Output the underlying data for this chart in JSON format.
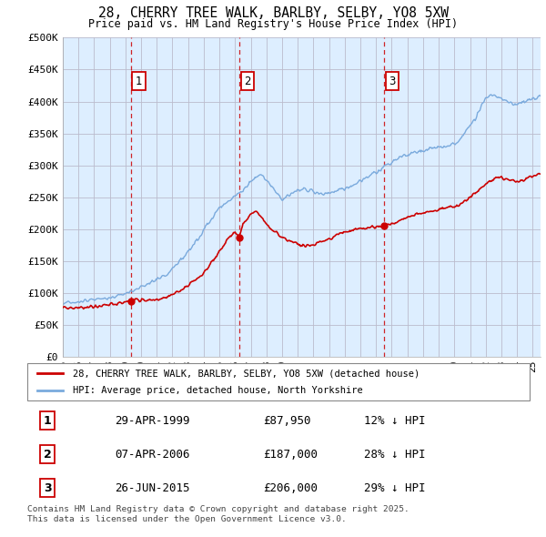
{
  "title": "28, CHERRY TREE WALK, BARLBY, SELBY, YO8 5XW",
  "subtitle": "Price paid vs. HM Land Registry's House Price Index (HPI)",
  "ylim": [
    0,
    500000
  ],
  "yticks": [
    0,
    50000,
    100000,
    150000,
    200000,
    250000,
    300000,
    350000,
    400000,
    450000,
    500000
  ],
  "xlim_start": 1995.0,
  "xlim_end": 2025.5,
  "sale_dates": [
    1999.33,
    2006.27,
    2015.49
  ],
  "sale_prices": [
    87950,
    187000,
    206000
  ],
  "sale_labels": [
    "1",
    "2",
    "3"
  ],
  "red_line_color": "#cc0000",
  "blue_line_color": "#7aaadd",
  "chart_bg_color": "#ddeeff",
  "legend_red_label": "28, CHERRY TREE WALK, BARLBY, SELBY, YO8 5XW (detached house)",
  "legend_blue_label": "HPI: Average price, detached house, North Yorkshire",
  "table_rows": [
    {
      "label": "1",
      "date": "29-APR-1999",
      "price": "£87,950",
      "hpi": "12% ↓ HPI"
    },
    {
      "label": "2",
      "date": "07-APR-2006",
      "price": "£187,000",
      "hpi": "28% ↓ HPI"
    },
    {
      "label": "3",
      "date": "26-JUN-2015",
      "price": "£206,000",
      "hpi": "29% ↓ HPI"
    }
  ],
  "footnote1": "Contains HM Land Registry data © Crown copyright and database right 2025.",
  "footnote2": "This data is licensed under the Open Government Licence v3.0.",
  "background_color": "#ffffff",
  "grid_color": "#bbbbcc"
}
